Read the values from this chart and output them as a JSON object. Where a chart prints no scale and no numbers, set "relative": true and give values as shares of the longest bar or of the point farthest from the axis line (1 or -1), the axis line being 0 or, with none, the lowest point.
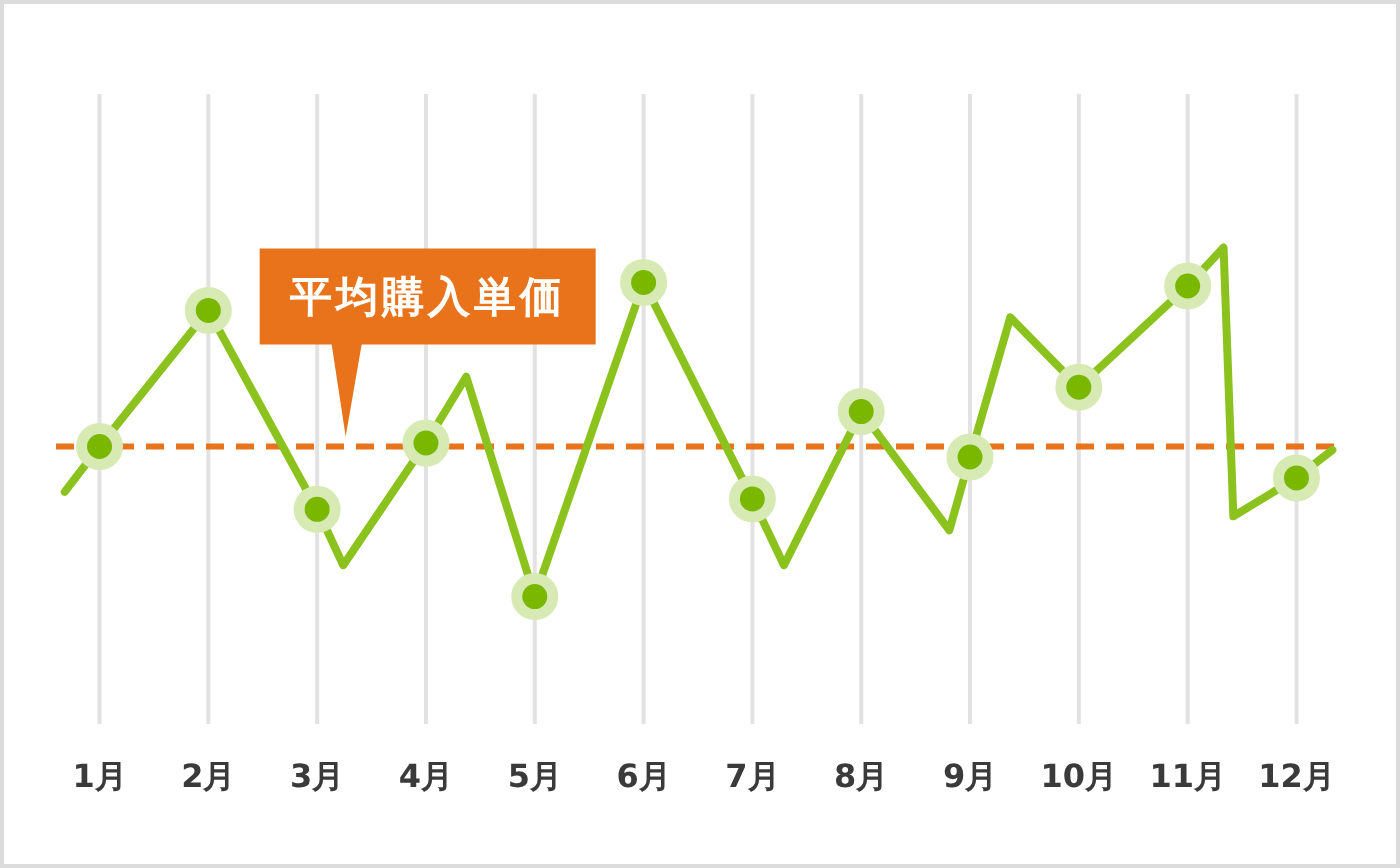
{
  "chart_data": {
    "type": "line",
    "relative": true,
    "xlim": [
      0.6,
      12.4
    ],
    "xticks": [
      {
        "value": 1,
        "label": "1月"
      },
      {
        "value": 2,
        "label": "2月"
      },
      {
        "value": 3,
        "label": "3月"
      },
      {
        "value": 4,
        "label": "4月"
      },
      {
        "value": 5,
        "label": "5月"
      },
      {
        "value": 6,
        "label": "6月"
      },
      {
        "value": 7,
        "label": "7月"
      },
      {
        "value": 8,
        "label": "8月"
      },
      {
        "value": 9,
        "label": "9月"
      },
      {
        "value": 10,
        "label": "10月"
      },
      {
        "value": 11,
        "label": "11月"
      },
      {
        "value": 12,
        "label": "12月"
      }
    ],
    "grid": "x",
    "series": [
      {
        "color": "#8cc21e",
        "x": [
          0.68,
          1,
          2,
          3,
          3.24,
          4,
          4.37,
          5,
          6,
          7,
          7.29,
          8,
          8.81,
          9,
          9.37,
          10,
          11,
          11.33,
          11.42,
          12,
          12.33
        ],
        "values": [
          0.3,
          0.43,
          0.82,
          0.25,
          0.09,
          0.44,
          0.63,
          0,
          0.9,
          0.28,
          0.09,
          0.53,
          0.19,
          0.4,
          0.8,
          0.6,
          0.89,
          1,
          0.23,
          0.34,
          0.42
        ]
      },
      {
        "type": "scatter",
        "color": "#7ab800",
        "marker": "circle",
        "x": [
          1,
          2,
          3,
          4,
          5,
          6,
          7,
          8,
          9,
          10,
          11,
          12
        ],
        "values": [
          0.43,
          0.82,
          0.25,
          0.44,
          0,
          0.9,
          0.28,
          0.53,
          0.4,
          0.6,
          0.89,
          0.34
        ]
      }
    ],
    "ref_lines": [
      {
        "axis": "y",
        "value": 0.43,
        "label": "平均購入単価",
        "color": "#e8731a",
        "line_style": "dashed"
      }
    ]
  }
}
